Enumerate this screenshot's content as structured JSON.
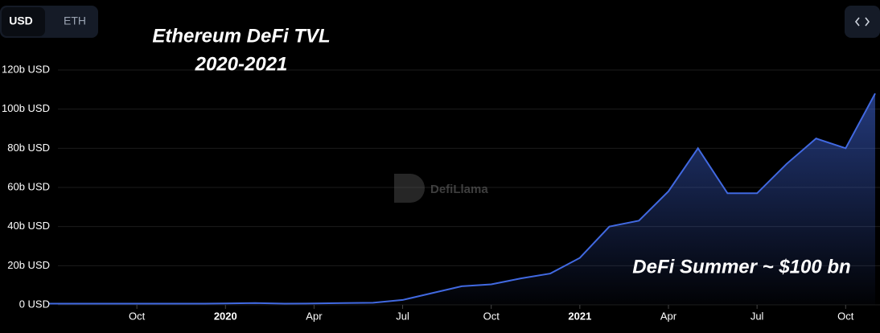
{
  "chart_data": {
    "type": "area",
    "title": "Ethereum DeFi TVL",
    "subtitle": "2020-2021",
    "annotation": "DeFi Summer ~ $100 bn",
    "watermark": "DefiLlama",
    "toggle": [
      "USD",
      "ETH"
    ],
    "color": "#4169e1",
    "grid": true,
    "x": [
      "2019-07",
      "2019-08",
      "2019-09",
      "2019-10",
      "2019-11",
      "2019-12",
      "2020-01",
      "2020-02",
      "2020-03",
      "2020-04",
      "2020-05",
      "2020-06",
      "2020-07",
      "2020-08",
      "2020-09",
      "2020-10",
      "2020-11",
      "2020-12",
      "2021-01",
      "2021-02",
      "2021-03",
      "2021-04",
      "2021-05",
      "2021-06",
      "2021-07",
      "2021-08",
      "2021-09",
      "2021-10",
      "2021-11"
    ],
    "values": [
      0.6,
      0.6,
      0.6,
      0.6,
      0.6,
      0.6,
      0.7,
      0.9,
      0.6,
      0.7,
      0.9,
      1.1,
      2.5,
      6,
      9.5,
      10.5,
      13.5,
      16,
      24,
      40,
      43,
      58,
      80,
      57,
      57,
      72,
      85,
      80,
      108
    ],
    "xlim": [
      "2019-07",
      "2021-11"
    ],
    "xticks": [
      {
        "value": "2019-10",
        "label": "Oct"
      },
      {
        "value": "2020-01",
        "label": "2020"
      },
      {
        "value": "2020-04",
        "label": "Apr"
      },
      {
        "value": "2020-07",
        "label": "Jul"
      },
      {
        "value": "2020-10",
        "label": "Oct"
      },
      {
        "value": "2021-01",
        "label": "2021"
      },
      {
        "value": "2021-04",
        "label": "Apr"
      },
      {
        "value": "2021-07",
        "label": "Jul"
      },
      {
        "value": "2021-10",
        "label": "Oct"
      }
    ],
    "ylim": [
      0,
      120
    ],
    "yticks": [
      {
        "value": 0,
        "label": "0 USD"
      },
      {
        "value": 20,
        "label": "20b USD"
      },
      {
        "value": 40,
        "label": "40b USD"
      },
      {
        "value": 60,
        "label": "60b USD"
      },
      {
        "value": 80,
        "label": "80b USD"
      },
      {
        "value": 100,
        "label": "100b USD"
      },
      {
        "value": 120,
        "label": "120b USD"
      }
    ]
  }
}
